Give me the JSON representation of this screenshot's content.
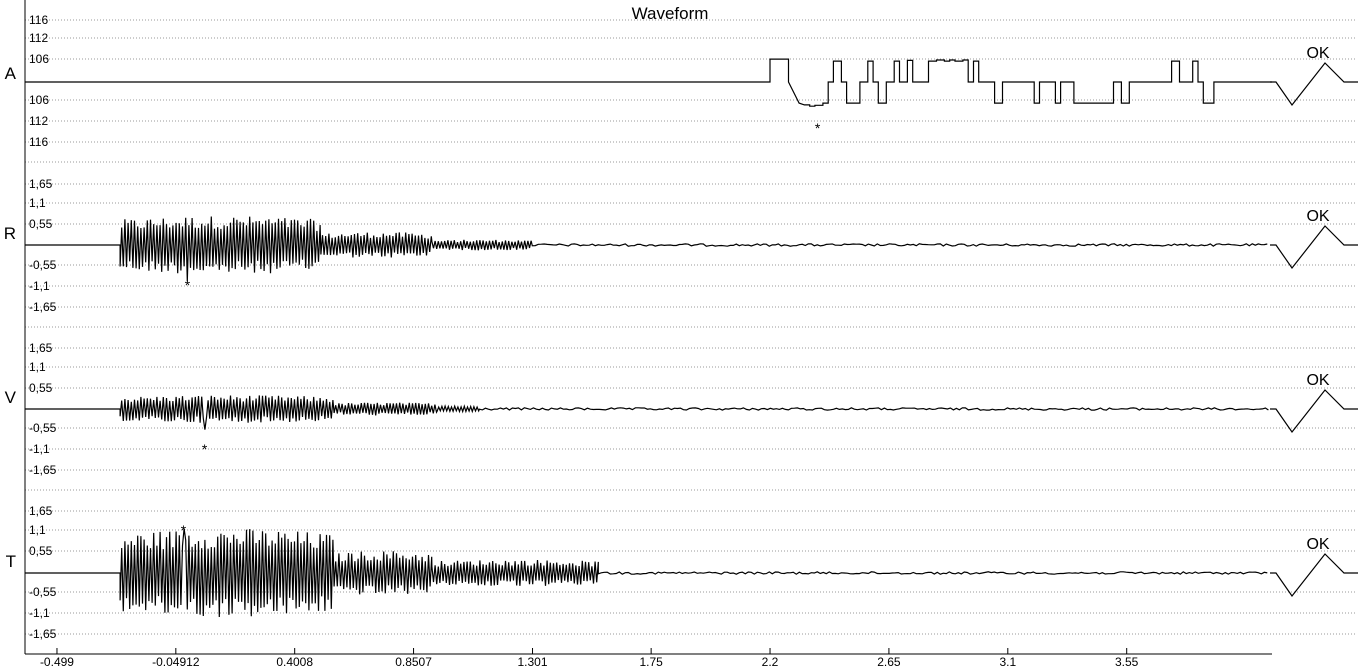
{
  "chart_data": {
    "type": "line",
    "title": "Waveform",
    "xlabel": "",
    "x_ticks": [
      "-0.499",
      "-0.04912",
      "0.4008",
      "0.8507",
      "1.301",
      "1.75",
      "2.2",
      "2.65",
      "3.1",
      "3.55"
    ],
    "xlim": [
      -0.62,
      4.1
    ],
    "grid": true,
    "channels": [
      {
        "name": "A",
        "status": "OK",
        "y_ticks": [
          "116",
          "112",
          "106",
          "106",
          "112",
          "116"
        ],
        "marker": {
          "label": "*",
          "x": 2.38
        },
        "series": {
          "type": "step",
          "baseline": 0,
          "x": [
            -0.62,
            2.2,
            2.2,
            2.27,
            2.27,
            2.31,
            2.33,
            2.35,
            2.35,
            2.37,
            2.37,
            2.4,
            2.4,
            2.42,
            2.42,
            2.44,
            2.44,
            2.47,
            2.47,
            2.49,
            2.49,
            2.51,
            2.51,
            2.54,
            2.54,
            2.57,
            2.57,
            2.59,
            2.59,
            2.61,
            2.61,
            2.64,
            2.64,
            2.67,
            2.67,
            2.69,
            2.69,
            2.72,
            2.72,
            2.74,
            2.74,
            2.77,
            2.77,
            2.8,
            2.8,
            2.83,
            2.83,
            2.86,
            2.86,
            2.88,
            2.88,
            2.9,
            2.9,
            2.93,
            2.93,
            2.95,
            2.95,
            2.97,
            2.97,
            2.99,
            2.99,
            3.01,
            3.01,
            3.03,
            3.03,
            3.05,
            3.05,
            3.08,
            3.08,
            3.2,
            3.2,
            3.22,
            3.22,
            3.28,
            3.28,
            3.3,
            3.3,
            3.35,
            3.35,
            3.37,
            3.37,
            3.43,
            3.43,
            3.5,
            3.5,
            3.53,
            3.53,
            3.56,
            3.56,
            3.65,
            3.65,
            3.7,
            3.7,
            3.72,
            3.72,
            3.75,
            3.75,
            3.78,
            3.78,
            3.8,
            3.8,
            3.82,
            3.82,
            3.84,
            3.84,
            3.88,
            3.88,
            4.1
          ],
          "y": [
            0,
            0,
            104,
            104,
            0,
            -96,
            -104,
            -104,
            -110,
            -110,
            -106,
            -106,
            -96,
            -96,
            0,
            0,
            95,
            95,
            0,
            0,
            -96,
            -96,
            -96,
            -96,
            0,
            0,
            95,
            95,
            0,
            0,
            -96,
            -96,
            0,
            0,
            95,
            95,
            0,
            0,
            98,
            98,
            0,
            0,
            0,
            0,
            95,
            95,
            100,
            100,
            95,
            95,
            100,
            100,
            95,
            95,
            100,
            100,
            0,
            0,
            95,
            95,
            0,
            0,
            0,
            0,
            0,
            0,
            -96,
            -96,
            0,
            0,
            -96,
            -96,
            0,
            0,
            -96,
            -96,
            0,
            0,
            -96,
            -96,
            -96,
            -96,
            -96,
            -96,
            0,
            0,
            -96,
            -96,
            0,
            0,
            0,
            0,
            0,
            0,
            95,
            95,
            0,
            0,
            0,
            0,
            95,
            95,
            0,
            0,
            -96,
            -96,
            0,
            0
          ]
        }
      },
      {
        "name": "R",
        "status": "OK",
        "y_ticks": [
          "1,65",
          "1,1",
          "0,55",
          "-0,55",
          "-1,1",
          "-1,65"
        ],
        "marker": {
          "label": "*",
          "x": -0.005
        },
        "series": {
          "type": "burst",
          "segments": [
            {
              "x_start": -0.26,
              "x_end": 0.5,
              "amplitude": 0.72
            },
            {
              "x_start": 0.5,
              "x_end": 0.92,
              "amplitude": 0.32
            },
            {
              "x_start": 0.92,
              "x_end": 1.3,
              "amplitude": 0.13
            }
          ],
          "peak": -0.98
        }
      },
      {
        "name": "V",
        "status": "OK",
        "y_ticks": [
          "1,65",
          "1,1",
          "0,55",
          "-0,55",
          "-1,1",
          "-1,65"
        ],
        "marker": {
          "label": "*",
          "x": 0.06
        },
        "series": {
          "type": "burst",
          "segments": [
            {
              "x_start": -0.26,
              "x_end": 0.55,
              "amplitude": 0.34
            },
            {
              "x_start": 0.55,
              "x_end": 0.94,
              "amplitude": 0.16
            },
            {
              "x_start": 0.94,
              "x_end": 1.1,
              "amplitude": 0.08
            }
          ],
          "peak": -0.56
        }
      },
      {
        "name": "T",
        "status": "OK",
        "y_ticks": [
          "1,65",
          "1,1",
          "0,55",
          "-0,55",
          "-1,1",
          "-1,65"
        ],
        "marker": {
          "label": "*",
          "x": -0.02
        },
        "series": {
          "type": "burst",
          "segments": [
            {
              "x_start": -0.26,
              "x_end": 0.55,
              "amplitude": 1.1
            },
            {
              "x_start": 0.55,
              "x_end": 0.92,
              "amplitude": 0.55
            },
            {
              "x_start": 0.92,
              "x_end": 1.55,
              "amplitude": 0.33
            }
          ],
          "peak": 1.2
        }
      }
    ]
  }
}
